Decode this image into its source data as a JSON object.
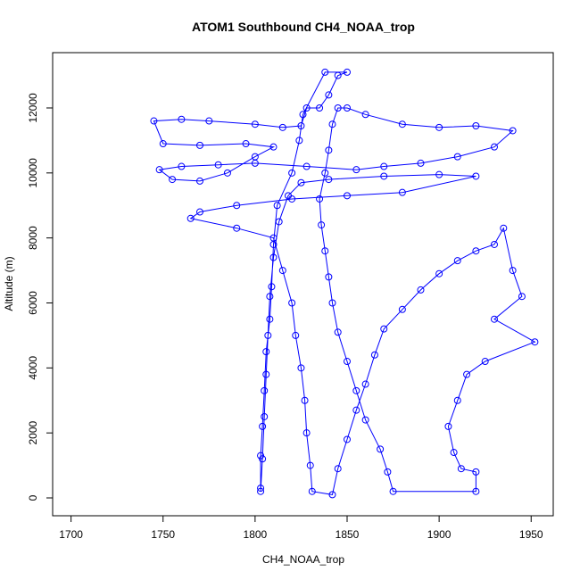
{
  "chart_data": {
    "type": "scatter",
    "title": "ATOM1 Southbound CH4_NOAA_trop",
    "x_label": "CH4_NOAA_trop",
    "y_label": "Altitude (m)",
    "xlim": [
      1690,
      1962
    ],
    "ylim": [
      -549,
      13702
    ],
    "xticks": [
      1700,
      1750,
      1800,
      1850,
      1900,
      1950
    ],
    "yticks": [
      0,
      2000,
      4000,
      6000,
      8000,
      10000,
      12000
    ],
    "series": [
      {
        "color": "#0000ff",
        "x": [
          1803,
          1804,
          1805,
          1806,
          1807,
          1808,
          1810,
          1813,
          1818,
          1825,
          1840,
          1870,
          1900,
          1920,
          1880,
          1850,
          1820,
          1790,
          1770,
          1765,
          1790,
          1810,
          1815,
          1820,
          1822,
          1825,
          1827,
          1828,
          1830,
          1831,
          1842,
          1845,
          1850,
          1855,
          1860,
          1865,
          1870,
          1880,
          1890,
          1900,
          1910,
          1920,
          1930,
          1935,
          1940,
          1945,
          1930,
          1952,
          1925,
          1915,
          1910,
          1905,
          1908,
          1912,
          1920,
          1920,
          1875,
          1872,
          1868,
          1860,
          1855,
          1850,
          1845,
          1842,
          1840,
          1838,
          1836,
          1835,
          1838,
          1840,
          1842,
          1845,
          1850,
          1860,
          1880,
          1900,
          1920,
          1940,
          1930,
          1910,
          1890,
          1870,
          1855,
          1828,
          1800,
          1780,
          1760,
          1748,
          1755,
          1770,
          1785,
          1800,
          1810,
          1795,
          1770,
          1750,
          1745,
          1760,
          1775,
          1800,
          1815,
          1825,
          1828,
          1835,
          1840,
          1845,
          1850,
          1838,
          1826,
          1824,
          1820,
          1812,
          1810,
          1809,
          1808,
          1806,
          1805,
          1804,
          1803,
          1803
        ],
        "values": [
          200,
          1200,
          2500,
          3800,
          5000,
          6200,
          7400,
          8500,
          9300,
          9700,
          9800,
          9900,
          9950,
          9900,
          9400,
          9300,
          9200,
          9000,
          8800,
          8600,
          8300,
          8000,
          7000,
          6000,
          5000,
          4000,
          3000,
          2000,
          1000,
          200,
          100,
          900,
          1800,
          2700,
          3500,
          4400,
          5200,
          5800,
          6400,
          6900,
          7300,
          7600,
          7800,
          8300,
          7000,
          6200,
          5500,
          4800,
          4200,
          3800,
          3000,
          2200,
          1400,
          900,
          800,
          200,
          200,
          800,
          1500,
          2400,
          3300,
          4200,
          5100,
          6000,
          6800,
          7600,
          8400,
          9200,
          10000,
          10700,
          11500,
          12000,
          12000,
          11800,
          11500,
          11400,
          11450,
          11300,
          10800,
          10500,
          10300,
          10200,
          10100,
          10200,
          10300,
          10250,
          10200,
          10100,
          9800,
          9750,
          10000,
          10500,
          10800,
          10900,
          10850,
          10900,
          11600,
          11650,
          11600,
          11500,
          11400,
          11450,
          12000,
          12000,
          12400,
          13000,
          13100,
          13100,
          11800,
          11000,
          10000,
          9000,
          7800,
          6500,
          5500,
          4500,
          3300,
          2200,
          1300,
          300
        ]
      }
    ]
  }
}
